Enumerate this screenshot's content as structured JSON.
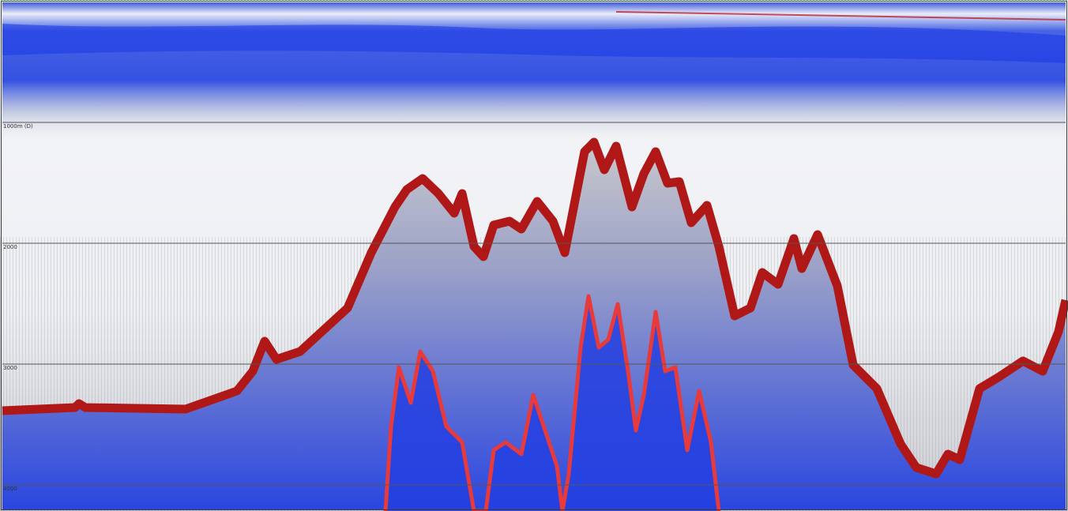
{
  "depth_labels": [
    "1000m (D)",
    "2000",
    "3000",
    "4000"
  ]
}
